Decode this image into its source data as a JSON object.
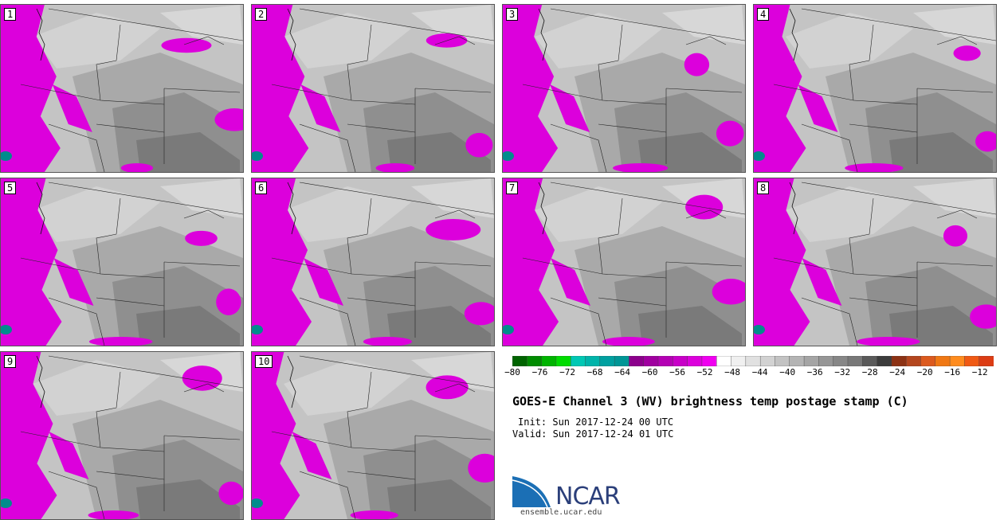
{
  "panels": [
    {
      "label": "1"
    },
    {
      "label": "2"
    },
    {
      "label": "3"
    },
    {
      "label": "4"
    },
    {
      "label": "5"
    },
    {
      "label": "6"
    },
    {
      "label": "7"
    },
    {
      "label": "8"
    },
    {
      "label": "9"
    },
    {
      "label": "10"
    }
  ],
  "colorbar": {
    "ticks": [
      "−80",
      "−76",
      "−72",
      "−68",
      "−64",
      "−60",
      "−56",
      "−52",
      "−48",
      "−44",
      "−40",
      "−36",
      "−32",
      "−28",
      "−24",
      "−20",
      "−16",
      "−12"
    ],
    "colors": [
      "#006400",
      "#008c00",
      "#00b400",
      "#00dc00",
      "#00c8b4",
      "#00b4aa",
      "#00a0a0",
      "#009696",
      "#8c008c",
      "#a000a0",
      "#b400b4",
      "#c800c8",
      "#dc00dc",
      "#f000f0",
      "#ffffff",
      "#f0f0f0",
      "#e1e1e1",
      "#d2d2d2",
      "#c3c3c3",
      "#b4b4b4",
      "#a5a5a5",
      "#969696",
      "#878787",
      "#787878",
      "#5a5a5a",
      "#3c3c3c",
      "#8c3214",
      "#b4461e",
      "#dc5a1e",
      "#f07814",
      "#ff8c1e",
      "#f05a14",
      "#dc3c14"
    ]
  },
  "title": "GOES-E Channel 3 (WV) brightness temp postage stamp (C)",
  "init": "Init: Sun 2017-12-24 00 UTC",
  "valid": "Valid: Sun 2017-12-24 01 UTC",
  "logo": {
    "text": "NCAR",
    "url": "ensemble.ucar.edu"
  }
}
